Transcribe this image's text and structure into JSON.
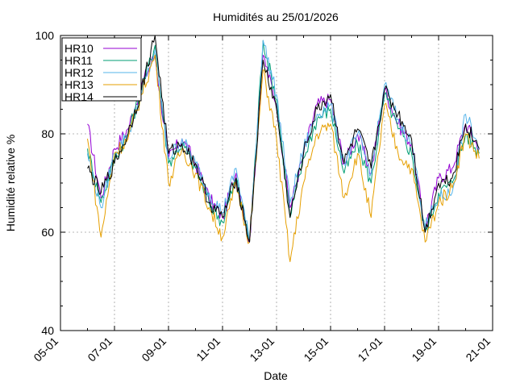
{
  "chart_data": {
    "type": "line",
    "title": "Humidités au 25/01/2026",
    "xlabel": "Date",
    "ylabel": "Humidité relative %",
    "xlim": [
      "05-01",
      "21-01"
    ],
    "ylim": [
      40,
      100
    ],
    "xticks": [
      "05-01",
      "07-01",
      "09-01",
      "11-01",
      "13-01",
      "15-01",
      "17-01",
      "19-01",
      "21-01"
    ],
    "yticks": [
      40,
      60,
      80,
      100
    ],
    "grid": true,
    "legend_position": "top-left",
    "series": [
      {
        "name": "HR10",
        "color": "#9400d3",
        "x": [
          "06-01 00:00",
          "06-01 12:00",
          "07-01 00:00",
          "07-01 12:00",
          "08-01 00:00",
          "08-01 12:00",
          "09-01 00:00",
          "09-01 12:00",
          "10-01 00:00",
          "10-01 12:00",
          "11-01 00:00",
          "11-01 12:00",
          "12-01 00:00",
          "12-01 12:00",
          "13-01 00:00",
          "13-01 12:00",
          "14-01 00:00",
          "14-01 12:00",
          "15-01 00:00",
          "15-01 12:00",
          "16-01 00:00",
          "16-01 12:00",
          "17-01 00:00",
          "17-01 12:00",
          "18-01 00:00",
          "18-01 12:00",
          "19-01 00:00",
          "19-01 12:00",
          "20-01 00:00",
          "20-01 12:00"
        ],
        "y": [
          82,
          67,
          77,
          81,
          90,
          96,
          75,
          79,
          74,
          67,
          63,
          72,
          58,
          96,
          86,
          65,
          76,
          86,
          87,
          74,
          80,
          72,
          89,
          82,
          78,
          61,
          71,
          73,
          82,
          77
        ]
      },
      {
        "name": "HR11",
        "color": "#009e73",
        "x": [
          "06-01 00:00",
          "06-01 12:00",
          "07-01 00:00",
          "07-01 12:00",
          "08-01 00:00",
          "08-01 12:00",
          "09-01 00:00",
          "09-01 12:00",
          "10-01 00:00",
          "10-01 12:00",
          "11-01 00:00",
          "11-01 12:00",
          "12-01 00:00",
          "12-01 12:00",
          "13-01 00:00",
          "13-01 12:00",
          "14-01 00:00",
          "14-01 12:00",
          "15-01 00:00",
          "15-01 12:00",
          "16-01 00:00",
          "16-01 12:00",
          "17-01 00:00",
          "17-01 12:00",
          "18-01 00:00",
          "18-01 12:00",
          "19-01 00:00",
          "19-01 12:00",
          "20-01 00:00",
          "20-01 12:00"
        ],
        "y": [
          77,
          66,
          75,
          80,
          89,
          98,
          74,
          78,
          73,
          66,
          62,
          71,
          58,
          99,
          87,
          63,
          75,
          83,
          85,
          72,
          78,
          70,
          88,
          81,
          76,
          60,
          68,
          70,
          80,
          76
        ]
      },
      {
        "name": "HR12",
        "color": "#56b4e9",
        "x": [
          "06-01 00:00",
          "06-01 12:00",
          "07-01 00:00",
          "07-01 12:00",
          "08-01 00:00",
          "08-01 12:00",
          "09-01 00:00",
          "09-01 12:00",
          "10-01 00:00",
          "10-01 12:00",
          "11-01 00:00",
          "11-01 12:00",
          "12-01 00:00",
          "12-01 12:00",
          "13-01 00:00",
          "13-01 12:00",
          "14-01 00:00",
          "14-01 12:00",
          "15-01 00:00",
          "15-01 12:00",
          "16-01 00:00",
          "16-01 12:00",
          "17-01 00:00",
          "17-01 12:00",
          "18-01 00:00",
          "18-01 12:00",
          "19-01 00:00",
          "19-01 12:00",
          "20-01 00:00",
          "20-01 12:00"
        ],
        "y": [
          76,
          65,
          76,
          80,
          88,
          97,
          75,
          79,
          74,
          68,
          64,
          73,
          58,
          99,
          88,
          66,
          77,
          84,
          86,
          74,
          80,
          72,
          90,
          83,
          78,
          61,
          67,
          68,
          84,
          77
        ]
      },
      {
        "name": "HR13",
        "color": "#e69f00",
        "x": [
          "06-01 00:00",
          "06-01 12:00",
          "07-01 00:00",
          "07-01 12:00",
          "08-01 00:00",
          "08-01 12:00",
          "09-01 00:00",
          "09-01 12:00",
          "10-01 00:00",
          "10-01 12:00",
          "11-01 00:00",
          "11-01 12:00",
          "12-01 00:00",
          "12-01 12:00",
          "13-01 00:00",
          "13-01 12:00",
          "14-01 00:00",
          "14-01 12:00",
          "15-01 00:00",
          "15-01 12:00",
          "16-01 00:00",
          "16-01 12:00",
          "17-01 00:00",
          "17-01 12:00",
          "18-01 00:00",
          "18-01 12:00",
          "19-01 00:00",
          "19-01 12:00",
          "20-01 00:00",
          "20-01 12:00"
        ],
        "y": [
          79,
          59,
          76,
          79,
          88,
          96,
          70,
          77,
          72,
          65,
          59,
          70,
          58,
          93,
          79,
          54,
          70,
          80,
          82,
          67,
          76,
          63,
          86,
          76,
          73,
          58,
          66,
          69,
          80,
          75
        ]
      },
      {
        "name": "HR14",
        "color": "#000000",
        "x": [
          "06-01 00:00",
          "06-01 12:00",
          "07-01 00:00",
          "07-01 12:00",
          "08-01 00:00",
          "08-01 12:00",
          "09-01 00:00",
          "09-01 12:00",
          "10-01 00:00",
          "10-01 12:00",
          "11-01 00:00",
          "11-01 12:00",
          "12-01 00:00",
          "12-01 12:00",
          "13-01 00:00",
          "13-01 12:00",
          "14-01 00:00",
          "14-01 12:00",
          "15-01 00:00",
          "15-01 12:00",
          "16-01 00:00",
          "16-01 12:00",
          "17-01 00:00",
          "17-01 12:00",
          "18-01 00:00",
          "18-01 12:00",
          "19-01 00:00",
          "19-01 12:00",
          "20-01 00:00",
          "20-01 12:00"
        ],
        "y": [
          73,
          68,
          74,
          80,
          89,
          100,
          76,
          78,
          74,
          66,
          63,
          71,
          58,
          95,
          85,
          63,
          76,
          85,
          88,
          74,
          81,
          73,
          89,
          84,
          79,
          60,
          70,
          71,
          82,
          77
        ]
      }
    ]
  }
}
